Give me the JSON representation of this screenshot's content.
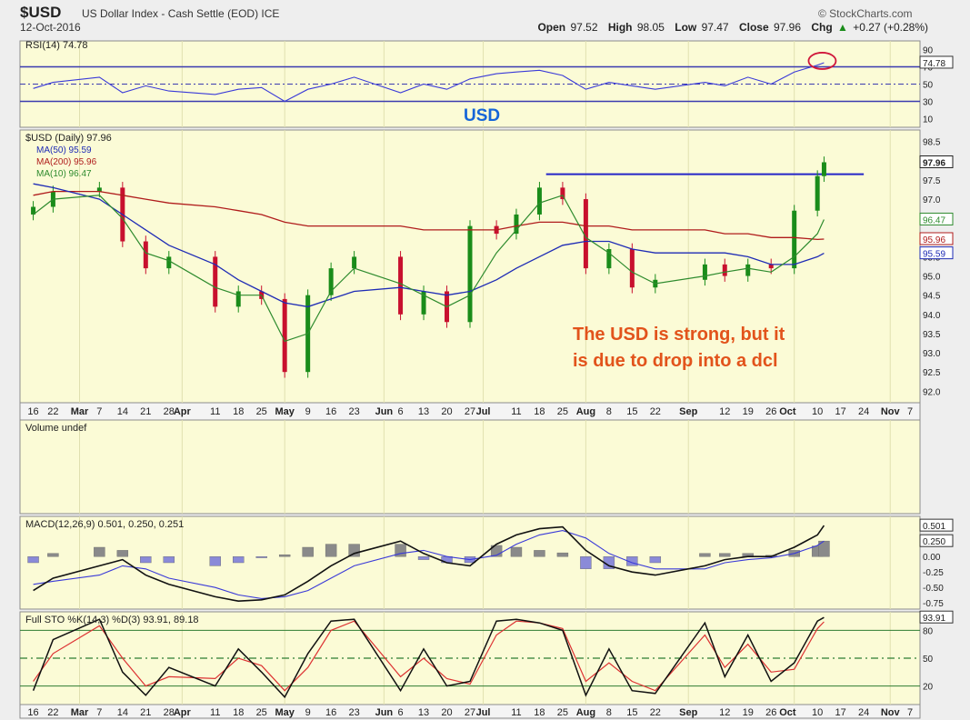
{
  "header": {
    "symbol": "$USD",
    "name": "US Dollar Index - Cash Settle (EOD) ICE",
    "date": "12-Oct-2016",
    "brand": "© StockCharts.com",
    "open_label": "Open",
    "open": "97.52",
    "high_label": "High",
    "high": "98.05",
    "low_label": "Low",
    "low": "97.47",
    "close_label": "Close",
    "close": "97.96",
    "chg_label": "Chg",
    "chg": "+0.27 (+0.28%)",
    "chg_arrow": "▲"
  },
  "overlay_text": {
    "usd_label": "USD",
    "annotation_line1": "The USD is strong, but it",
    "annotation_line2": "is due to drop into a dcl"
  },
  "colors": {
    "panel_bg": "#fbfbd6",
    "price_line": "#2a2ad0",
    "ma50": "#1e2bb5",
    "ma200": "#b01c1c",
    "ma10": "#2e8b2e",
    "up_candle": "#1a8c1a",
    "down_candle": "#c8102e",
    "annotation": "#e2531b",
    "usd_label": "#1565d8",
    "rsi_circle": "#d0163a"
  },
  "chart_data": [
    {
      "type": "line",
      "panel": "RSI",
      "title": "RSI(14) 74.78",
      "indicator": "RSI(14)",
      "last_value": 74.78,
      "ylim": [
        0,
        100
      ],
      "y_ticks": [
        90,
        70,
        50,
        30,
        10
      ],
      "reference_lines": [
        70,
        30
      ],
      "mid_line": 50,
      "dates": [
        "2016-02-16",
        "2016-02-22",
        "2016-03-07",
        "2016-03-14",
        "2016-03-21",
        "2016-03-28",
        "2016-04-11",
        "2016-04-18",
        "2016-04-25",
        "2016-05-02",
        "2016-05-09",
        "2016-05-16",
        "2016-05-23",
        "2016-06-06",
        "2016-06-13",
        "2016-06-20",
        "2016-06-27",
        "2016-07-05",
        "2016-07-11",
        "2016-07-18",
        "2016-07-25",
        "2016-08-01",
        "2016-08-08",
        "2016-08-15",
        "2016-08-22",
        "2016-09-06",
        "2016-09-12",
        "2016-09-19",
        "2016-09-26",
        "2016-10-03",
        "2016-10-10",
        "2016-10-12"
      ],
      "values": [
        45,
        52,
        58,
        40,
        48,
        42,
        38,
        44,
        46,
        30,
        44,
        50,
        58,
        40,
        50,
        44,
        56,
        62,
        64,
        66,
        60,
        44,
        52,
        48,
        44,
        52,
        48,
        58,
        50,
        64,
        72,
        74.78
      ]
    },
    {
      "type": "candlestick",
      "panel": "Price",
      "title": "$USD (Daily) 97.96",
      "series": [
        {
          "name": "MA(50) 95.59",
          "last": 95.59
        },
        {
          "name": "MA(200) 95.96",
          "last": 95.96
        },
        {
          "name": "MA(10) 96.47",
          "last": 96.47
        }
      ],
      "ylim": [
        91.7,
        98.8
      ],
      "y_ticks": [
        98.5,
        97.5,
        97.0,
        96.5,
        96.0,
        95.5,
        95.0,
        94.5,
        94.0,
        93.5,
        93.0,
        92.5,
        92.0
      ],
      "y_tick_labels": [
        "98.5",
        "97.5",
        "97.0",
        "96.5",
        "96.0",
        "95.5",
        "95.0",
        "94.5",
        "94.0",
        "93.5",
        "93.0",
        "92.5",
        "92.0"
      ],
      "right_value_tags": [
        "97.96",
        "96.47",
        "95.96",
        "95.59"
      ],
      "resistance_line": 97.65,
      "dates": [
        "2016-02-16",
        "2016-02-22",
        "2016-03-07",
        "2016-03-14",
        "2016-03-21",
        "2016-03-28",
        "2016-04-11",
        "2016-04-18",
        "2016-04-25",
        "2016-05-02",
        "2016-05-09",
        "2016-05-16",
        "2016-05-23",
        "2016-06-06",
        "2016-06-13",
        "2016-06-20",
        "2016-06-27",
        "2016-07-05",
        "2016-07-11",
        "2016-07-18",
        "2016-07-25",
        "2016-08-01",
        "2016-08-08",
        "2016-08-15",
        "2016-08-22",
        "2016-09-06",
        "2016-09-12",
        "2016-09-19",
        "2016-09-26",
        "2016-10-03",
        "2016-10-10",
        "2016-10-12"
      ],
      "close": [
        96.8,
        97.2,
        97.3,
        95.9,
        95.2,
        95.5,
        94.2,
        94.6,
        94.4,
        92.5,
        94.5,
        95.2,
        95.5,
        94.0,
        94.6,
        93.8,
        96.3,
        96.1,
        96.6,
        97.3,
        97.0,
        95.2,
        95.7,
        94.7,
        94.9,
        95.3,
        95.0,
        95.3,
        95.2,
        96.7,
        97.6,
        97.96
      ],
      "ma50": [
        97.4,
        97.3,
        97.0,
        96.6,
        96.2,
        95.8,
        95.3,
        94.9,
        94.6,
        94.3,
        94.2,
        94.4,
        94.6,
        94.7,
        94.6,
        94.5,
        94.6,
        94.9,
        95.2,
        95.5,
        95.8,
        95.9,
        95.9,
        95.7,
        95.6,
        95.6,
        95.6,
        95.5,
        95.3,
        95.3,
        95.5,
        95.59
      ],
      "ma200": [
        97.1,
        97.2,
        97.2,
        97.1,
        97.0,
        96.9,
        96.8,
        96.7,
        96.6,
        96.4,
        96.3,
        96.3,
        96.3,
        96.3,
        96.2,
        96.2,
        96.2,
        96.2,
        96.3,
        96.4,
        96.4,
        96.3,
        96.3,
        96.2,
        96.2,
        96.2,
        96.1,
        96.1,
        96.0,
        96.0,
        95.95,
        95.96
      ],
      "ma10": [
        96.6,
        97.0,
        97.1,
        96.5,
        95.6,
        95.4,
        94.7,
        94.5,
        94.5,
        93.3,
        93.5,
        94.6,
        95.2,
        94.8,
        94.5,
        94.2,
        94.5,
        95.6,
        96.2,
        96.9,
        97.1,
        96.0,
        95.6,
        95.1,
        94.8,
        95.0,
        95.1,
        95.2,
        95.1,
        95.5,
        96.1,
        96.47
      ]
    },
    {
      "type": "bar",
      "panel": "Volume",
      "title": "Volume undef",
      "values": []
    },
    {
      "type": "line",
      "panel": "MACD",
      "title": "MACD(12,26,9) 0.501, 0.250, 0.251",
      "series": [
        {
          "name": "MACD",
          "last": 0.501
        },
        {
          "name": "Signal",
          "last": 0.25
        },
        {
          "name": "Histogram",
          "last": 0.251
        }
      ],
      "ylim": [
        -0.85,
        0.65
      ],
      "y_ticks": [
        0.501,
        0.25,
        0.0,
        -0.25,
        -0.5,
        -0.75
      ],
      "y_tick_labels": [
        "0.501",
        "0.250",
        "0.00",
        "-0.25",
        "-0.50",
        "-0.75"
      ],
      "dates": [
        "2016-02-16",
        "2016-02-22",
        "2016-03-07",
        "2016-03-14",
        "2016-03-21",
        "2016-03-28",
        "2016-04-11",
        "2016-04-18",
        "2016-04-25",
        "2016-05-02",
        "2016-05-09",
        "2016-05-16",
        "2016-05-23",
        "2016-06-06",
        "2016-06-13",
        "2016-06-20",
        "2016-06-27",
        "2016-07-05",
        "2016-07-11",
        "2016-07-18",
        "2016-07-25",
        "2016-08-01",
        "2016-08-08",
        "2016-08-15",
        "2016-08-22",
        "2016-09-06",
        "2016-09-12",
        "2016-09-19",
        "2016-09-26",
        "2016-10-03",
        "2016-10-10",
        "2016-10-12"
      ],
      "macd": [
        -0.55,
        -0.35,
        -0.15,
        -0.05,
        -0.3,
        -0.45,
        -0.65,
        -0.72,
        -0.7,
        -0.62,
        -0.4,
        -0.15,
        0.05,
        0.25,
        0.05,
        -0.1,
        -0.15,
        0.2,
        0.35,
        0.45,
        0.48,
        0.1,
        -0.15,
        -0.25,
        -0.3,
        -0.15,
        -0.05,
        0.0,
        0.0,
        0.15,
        0.35,
        0.501
      ],
      "signal": [
        -0.45,
        -0.4,
        -0.3,
        -0.15,
        -0.2,
        -0.35,
        -0.5,
        -0.62,
        -0.68,
        -0.65,
        -0.55,
        -0.35,
        -0.15,
        0.05,
        0.1,
        0.0,
        -0.05,
        0.02,
        0.2,
        0.35,
        0.42,
        0.3,
        0.05,
        -0.1,
        -0.2,
        -0.2,
        -0.1,
        -0.05,
        -0.02,
        0.05,
        0.18,
        0.25
      ],
      "histogram": [
        -0.1,
        0.05,
        0.15,
        0.1,
        -0.1,
        -0.1,
        -0.15,
        -0.1,
        -0.02,
        0.03,
        0.15,
        0.2,
        0.2,
        0.2,
        -0.05,
        -0.1,
        -0.1,
        0.18,
        0.15,
        0.1,
        0.06,
        -0.2,
        -0.2,
        -0.15,
        -0.1,
        0.05,
        0.05,
        0.05,
        0.02,
        0.1,
        0.17,
        0.251
      ]
    },
    {
      "type": "line",
      "panel": "Full STO",
      "title": "Full STO %K(14,3) %D(3) 93.91, 89.18",
      "series": [
        {
          "name": "%K(14,3)",
          "last": 93.91
        },
        {
          "name": "%D(3)",
          "last": 89.18
        }
      ],
      "ylim": [
        0,
        100
      ],
      "y_ticks": [
        80,
        50,
        20
      ],
      "right_value_tags": [
        "93.91"
      ],
      "dates": [
        "2016-02-16",
        "2016-02-22",
        "2016-03-07",
        "2016-03-14",
        "2016-03-21",
        "2016-03-28",
        "2016-04-11",
        "2016-04-18",
        "2016-04-25",
        "2016-05-02",
        "2016-05-09",
        "2016-05-16",
        "2016-05-23",
        "2016-06-06",
        "2016-06-13",
        "2016-06-20",
        "2016-06-27",
        "2016-07-05",
        "2016-07-11",
        "2016-07-18",
        "2016-07-25",
        "2016-08-01",
        "2016-08-08",
        "2016-08-15",
        "2016-08-22",
        "2016-09-06",
        "2016-09-12",
        "2016-09-19",
        "2016-09-26",
        "2016-10-03",
        "2016-10-10",
        "2016-10-12"
      ],
      "k": [
        15,
        70,
        92,
        35,
        10,
        40,
        20,
        60,
        35,
        8,
        55,
        90,
        92,
        15,
        60,
        20,
        25,
        90,
        92,
        88,
        80,
        10,
        60,
        15,
        12,
        88,
        30,
        75,
        25,
        45,
        90,
        93.91
      ],
      "d": [
        25,
        55,
        85,
        50,
        20,
        30,
        28,
        50,
        42,
        15,
        40,
        80,
        90,
        30,
        50,
        28,
        22,
        75,
        90,
        88,
        82,
        25,
        45,
        25,
        15,
        75,
        40,
        65,
        35,
        38,
        82,
        89.18
      ]
    }
  ],
  "x_axis": {
    "labels": [
      {
        "text": "16",
        "bold": false
      },
      {
        "text": "22",
        "bold": false
      },
      {
        "text": "Mar",
        "bold": true
      },
      {
        "text": "7",
        "bold": false
      },
      {
        "text": "14",
        "bold": false
      },
      {
        "text": "21",
        "bold": false
      },
      {
        "text": "28",
        "bold": false
      },
      {
        "text": "Apr",
        "bold": true
      },
      {
        "text": "11",
        "bold": false
      },
      {
        "text": "18",
        "bold": false
      },
      {
        "text": "25",
        "bold": false
      },
      {
        "text": "May",
        "bold": true
      },
      {
        "text": "9",
        "bold": false
      },
      {
        "text": "16",
        "bold": false
      },
      {
        "text": "23",
        "bold": false
      },
      {
        "text": "Jun",
        "bold": true
      },
      {
        "text": "6",
        "bold": false
      },
      {
        "text": "13",
        "bold": false
      },
      {
        "text": "20",
        "bold": false
      },
      {
        "text": "27",
        "bold": false
      },
      {
        "text": "Jul",
        "bold": true
      },
      {
        "text": "11",
        "bold": false
      },
      {
        "text": "18",
        "bold": false
      },
      {
        "text": "25",
        "bold": false
      },
      {
        "text": "Aug",
        "bold": true
      },
      {
        "text": "8",
        "bold": false
      },
      {
        "text": "15",
        "bold": false
      },
      {
        "text": "22",
        "bold": false
      },
      {
        "text": "Sep",
        "bold": true
      },
      {
        "text": "12",
        "bold": false
      },
      {
        "text": "19",
        "bold": false
      },
      {
        "text": "26",
        "bold": false
      },
      {
        "text": "Oct",
        "bold": true
      },
      {
        "text": "10",
        "bold": false
      },
      {
        "text": "17",
        "bold": false
      },
      {
        "text": "24",
        "bold": false
      },
      {
        "text": "Nov",
        "bold": true
      },
      {
        "text": "7",
        "bold": false
      }
    ]
  }
}
